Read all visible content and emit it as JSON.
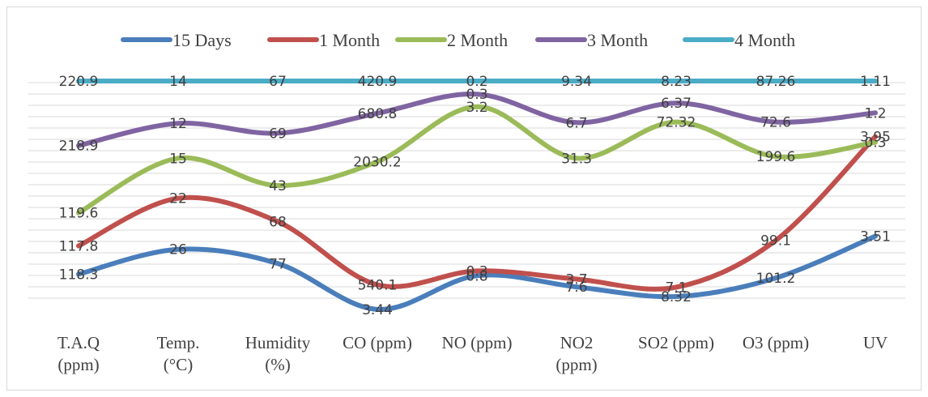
{
  "chart_data": {
    "type": "line",
    "title": "",
    "xlabel": "",
    "ylabel": "",
    "grid": true,
    "legend_position": "top",
    "categories": [
      [
        "T.A.Q",
        "(ppm)"
      ],
      [
        "Temp.",
        "(°C)"
      ],
      [
        "Humidity",
        "(%)"
      ],
      [
        "CO (ppm)"
      ],
      [
        "NO (ppm)"
      ],
      [
        "NO2",
        "(ppm)"
      ],
      [
        "SO2 (ppm)"
      ],
      [
        "O3 (ppm)"
      ],
      [
        "UV"
      ]
    ],
    "series": [
      {
        "name": "15 Days",
        "color": "#4a7ebb",
        "labels": [
          "118.3",
          "26",
          "77",
          "3.44",
          "0.8",
          "7.6",
          "8.32",
          "101.2",
          "3.51"
        ],
        "plot_level": [
          8.2,
          21.3,
          13.8,
          -10.4,
          7.4,
          1.5,
          -3.6,
          6.2,
          28.2
        ]
      },
      {
        "name": "1 Month",
        "color": "#c0504d",
        "labels": [
          "117.8",
          "22",
          "68",
          "540.1",
          "0.3",
          "3.7",
          "7.1",
          "99.1",
          "3.95"
        ],
        "plot_level": [
          23.1,
          48.2,
          35.9,
          2.6,
          9.9,
          5.6,
          1.3,
          26.0,
          80.7
        ]
      },
      {
        "name": "2 Month",
        "color": "#9bbb59",
        "labels": [
          "119.6",
          "15",
          "43",
          "2030.2",
          "3.2",
          "31.3",
          "72.32",
          "199.6",
          "0.3"
        ],
        "plot_level": [
          40.5,
          69.3,
          54.9,
          67.5,
          96.4,
          69.3,
          88.4,
          70.2,
          77.7
        ]
      },
      {
        "name": "3 Month",
        "color": "#8064a2",
        "labels": [
          "218.9",
          "12",
          "69",
          "680.8",
          "0.3",
          "6.7",
          "6.37",
          "72.6",
          "1.2"
        ],
        "plot_level": [
          76.0,
          87.7,
          82.5,
          93.0,
          103.1,
          88.1,
          98.4,
          88.4,
          93.2
        ]
      },
      {
        "name": "4 Month",
        "color": "#4bacc6",
        "labels": [
          "220.9",
          "14",
          "67",
          "420.9",
          "0.2",
          "9.34",
          "8.23",
          "87.26",
          "1.11"
        ],
        "plot_level": [
          110,
          110,
          110,
          110,
          110,
          110,
          110,
          110,
          110
        ]
      }
    ],
    "data_label_offsets": [
      [
        0,
        0,
        0,
        0,
        0,
        0,
        0,
        0,
        0
      ],
      [
        0,
        0,
        0,
        0,
        0,
        0,
        0,
        0,
        0
      ],
      [
        0,
        0,
        0,
        0,
        0,
        0,
        0,
        0,
        0
      ],
      [
        0,
        0,
        0,
        0,
        0,
        0,
        0,
        0,
        0
      ],
      [
        0,
        0,
        0,
        0,
        0,
        0,
        0,
        0,
        0
      ]
    ]
  }
}
